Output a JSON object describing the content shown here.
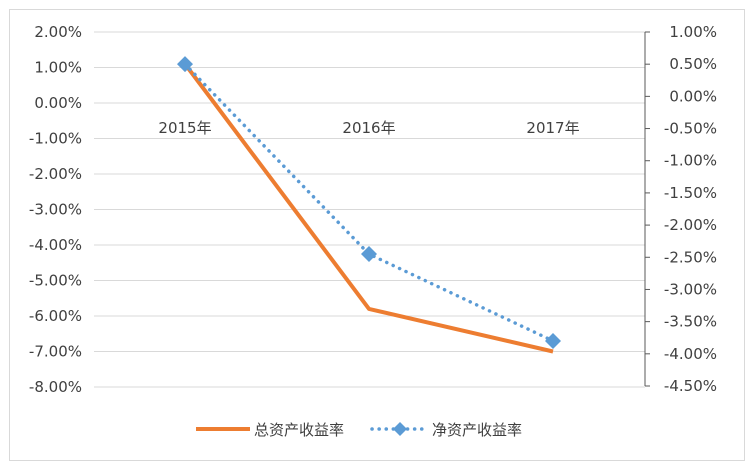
{
  "chart_data": {
    "type": "line",
    "categories": [
      "2015年",
      "2016年",
      "2017年"
    ],
    "series": [
      {
        "name": "总资产收益率",
        "axis": "left",
        "values": [
          1.1,
          -5.8,
          -7.0
        ],
        "color": "#ED7D31",
        "style": "solid",
        "marker": "none"
      },
      {
        "name": "净资产收益率",
        "axis": "right",
        "values": [
          0.5,
          -2.45,
          -3.8
        ],
        "color": "#5B9BD5",
        "style": "dotted",
        "marker": "diamond"
      }
    ],
    "left_axis": {
      "ylim": [
        -8,
        2
      ],
      "ticks": [
        "2.00%",
        "1.00%",
        "0.00%",
        "-1.00%",
        "-2.00%",
        "-3.00%",
        "-4.00%",
        "-5.00%",
        "-6.00%",
        "-7.00%",
        "-8.00%"
      ]
    },
    "right_axis": {
      "ylim": [
        -4.5,
        1
      ],
      "ticks": [
        "1.00%",
        "0.50%",
        "0.00%",
        "-0.50%",
        "-1.00%",
        "-1.50%",
        "-2.00%",
        "-2.50%",
        "-3.00%",
        "-3.50%",
        "-4.00%",
        "-4.50%"
      ]
    },
    "grid": true,
    "legend_position": "bottom"
  }
}
